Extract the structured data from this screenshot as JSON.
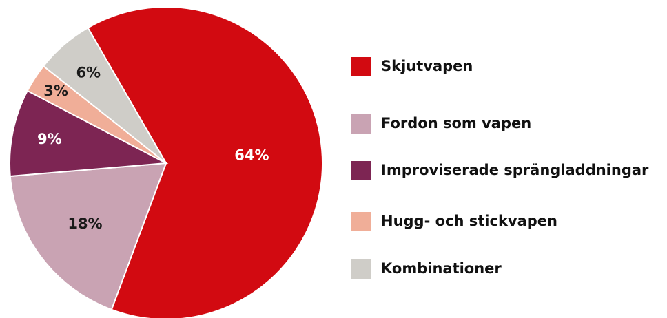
{
  "chart_data": {
    "type": "pie",
    "categories": [
      "Skjutvapen",
      "Fordon som vapen",
      "Improviserade sprängladdningar",
      "Hugg- och stickvapen",
      "Kombinationer"
    ],
    "values": [
      64,
      18,
      9,
      3,
      6
    ],
    "value_labels": [
      "64%",
      "18%",
      "9%",
      "3%",
      "6%"
    ],
    "colors": [
      "#d20a11",
      "#c9a3b3",
      "#7d2553",
      "#f0ae98",
      "#cfcdc8"
    ],
    "legend": "right"
  }
}
